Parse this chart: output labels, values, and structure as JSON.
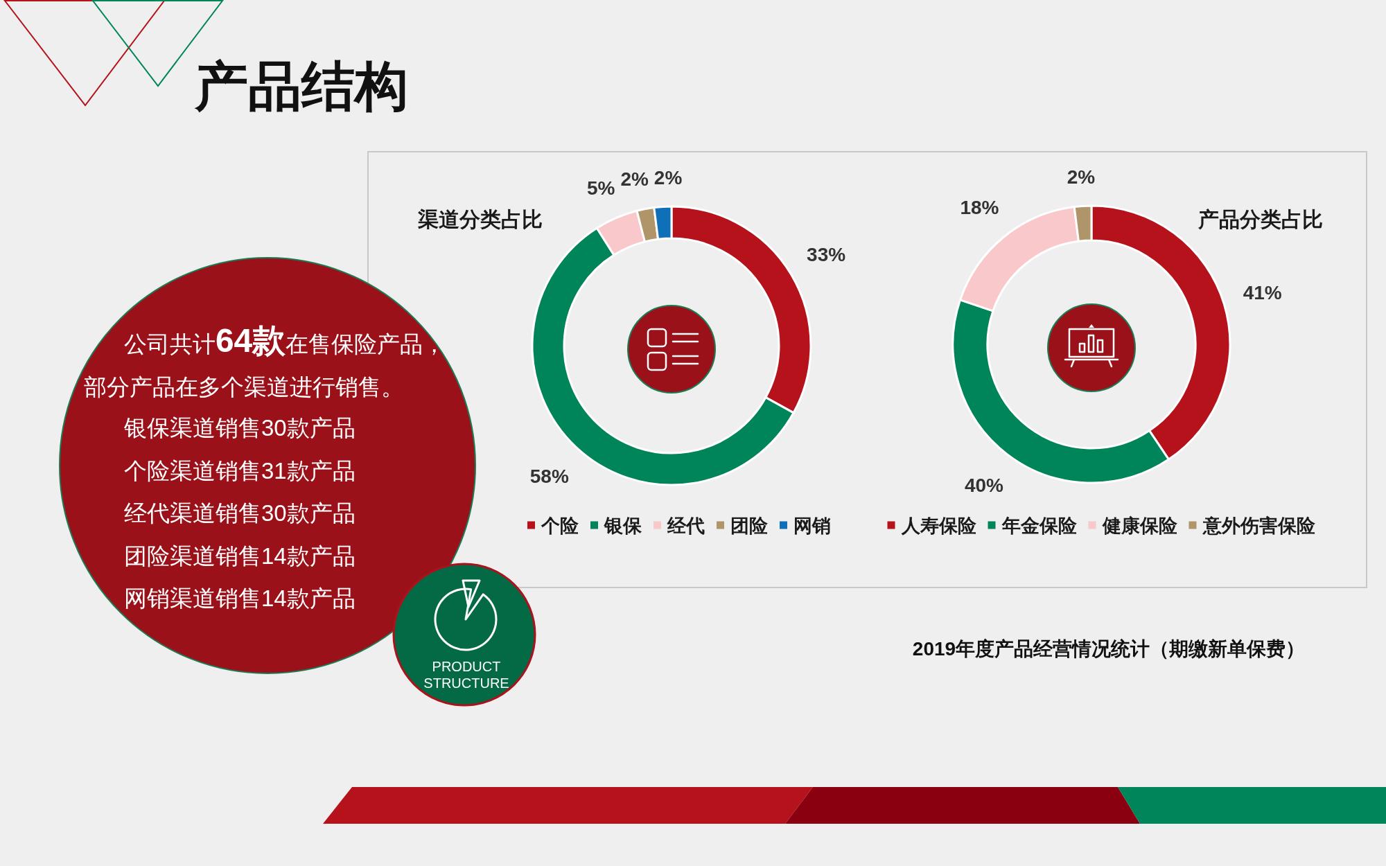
{
  "chart_data": [
    {
      "type": "other",
      "title": "产品结构",
      "subtitle": "PRODUCT STRUCTURE",
      "annotations": [
        "公司共计**64款**在售保险产品，",
        "部分产品在多个渠道进行销售。",
        "银保渠道销售30款产品",
        "个险渠道销售31款产品",
        "经代渠道销售30款产品",
        "团险渠道销售14款产品",
        "网销渠道销售14款产品"
      ]
    },
    {
      "type": "donut",
      "title": "渠道分类占比",
      "categories": [
        "个险",
        "银保",
        "经代",
        "团险",
        "网销"
      ],
      "values": [
        33,
        58,
        5,
        2,
        2
      ],
      "colors": [
        "#b5121b",
        "#00845a",
        "#f8c8ca",
        "#b0946a",
        "#0f6fb8"
      ],
      "value_labels": [
        "33%",
        "58%",
        "5%",
        "2%",
        "2%"
      ],
      "legend": "bottom"
    },
    {
      "type": "donut",
      "title": "产品分类占比",
      "categories": [
        "人寿保险",
        "年金保险",
        "健康保险",
        "意外伤害保险"
      ],
      "values": [
        41,
        40,
        18,
        2
      ],
      "colors": [
        "#b5121b",
        "#00845a",
        "#f8c8ca",
        "#b0946a"
      ],
      "value_labels": [
        "41%",
        "40%",
        "18%",
        "2%"
      ],
      "legend": "bottom",
      "annotations": [
        "2019年度产品经营情况统计（期缴新单保费）"
      ]
    }
  ]
}
